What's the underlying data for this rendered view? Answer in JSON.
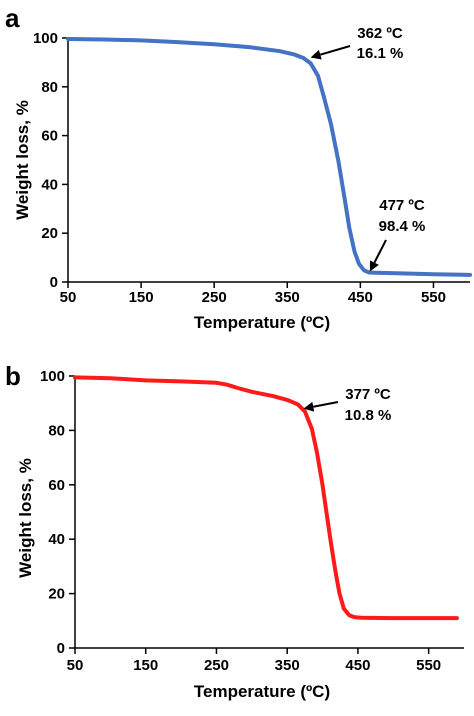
{
  "chart_data": [
    {
      "type": "line",
      "panel_label": "a",
      "xlabel": "Temperature (ºC)",
      "ylabel": "Weight loss, %",
      "xlim": [
        50,
        600
      ],
      "ylim": [
        0,
        100
      ],
      "xticks": [
        50,
        150,
        250,
        350,
        450,
        550
      ],
      "yticks": [
        0,
        20,
        40,
        60,
        80,
        100
      ],
      "grid": false,
      "series": [
        {
          "color": "#4472c4",
          "x": [
            50,
            100,
            150,
            200,
            250,
            300,
            340,
            360,
            372,
            382,
            392,
            400,
            410,
            420,
            428,
            435,
            442,
            448,
            455,
            462,
            470,
            500,
            550,
            600
          ],
          "y": [
            99.6,
            99.4,
            99.0,
            98.3,
            97.4,
            96.2,
            94.6,
            93.2,
            91.8,
            89.6,
            84.5,
            76.0,
            64.5,
            49.5,
            35.0,
            22.0,
            12.5,
            7.5,
            4.8,
            3.9,
            3.8,
            3.6,
            3.2,
            2.9
          ]
        }
      ],
      "annotations": [
        {
          "line1": "362 ºC",
          "line2": "16.1 %",
          "arrow_to_x": 382,
          "arrow_to_y": 92
        },
        {
          "line1": "477 ºC",
          "line2": "98.4 %",
          "arrow_to_x": 463,
          "arrow_to_y": 4.3
        }
      ]
    },
    {
      "type": "line",
      "panel_label": "b",
      "xlabel": "Temperature (ºC)",
      "ylabel": "Weight loss, %",
      "xlim": [
        50,
        600
      ],
      "ylim": [
        0,
        100
      ],
      "xticks": [
        50,
        150,
        250,
        350,
        450,
        550
      ],
      "yticks": [
        0,
        20,
        40,
        60,
        80,
        100
      ],
      "grid": false,
      "series": [
        {
          "color": "#ff1a1a",
          "x": [
            50,
            100,
            150,
            200,
            250,
            265,
            280,
            300,
            330,
            350,
            365,
            375,
            385,
            392,
            400,
            406,
            412,
            418,
            424,
            430,
            438,
            446,
            455,
            500,
            550,
            590
          ],
          "y": [
            99.5,
            99.2,
            98.4,
            98.0,
            97.5,
            96.8,
            95.6,
            94.2,
            92.6,
            91.2,
            89.6,
            87.0,
            80.5,
            72.0,
            60.0,
            49.0,
            38.5,
            28.5,
            20.0,
            14.5,
            12.0,
            11.3,
            11.1,
            11.0,
            11.0,
            11.0
          ]
        }
      ],
      "annotations": [
        {
          "line1": "377 ºC",
          "line2": "10.8 %",
          "arrow_to_x": 373,
          "arrow_to_y": 88
        }
      ]
    }
  ],
  "colors": {
    "axis": "#000000",
    "series_a": "#4472c4",
    "series_b": "#ff1a1a"
  }
}
